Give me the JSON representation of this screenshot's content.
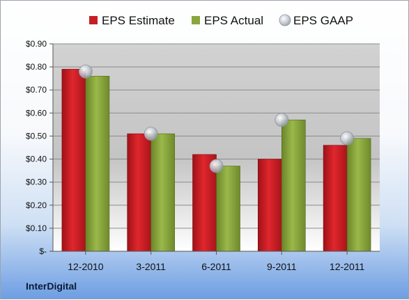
{
  "company": "InterDigital",
  "colors": {
    "estimate": "#c62026",
    "actual": "#8aa63c",
    "gaap": "#b8bec6"
  },
  "chart_data": {
    "type": "bar",
    "categories": [
      "12-2010",
      "3-2011",
      "6-2011",
      "9-2011",
      "12-2011"
    ],
    "series": [
      {
        "name": "EPS Estimate",
        "kind": "bar",
        "values": [
          0.79,
          0.51,
          0.42,
          0.4,
          0.46
        ]
      },
      {
        "name": "EPS Actual",
        "kind": "bar",
        "values": [
          0.76,
          0.51,
          0.37,
          0.57,
          0.49
        ]
      },
      {
        "name": "EPS GAAP",
        "kind": "marker",
        "values": [
          0.78,
          0.51,
          0.37,
          0.57,
          0.49
        ]
      }
    ],
    "yticks": [
      "$-",
      "$0.10",
      "$0.20",
      "$0.30",
      "$0.40",
      "$0.50",
      "$0.60",
      "$0.70",
      "$0.80",
      "$0.90"
    ],
    "ylim": [
      0,
      0.9
    ],
    "legend": "top",
    "grid": true
  }
}
